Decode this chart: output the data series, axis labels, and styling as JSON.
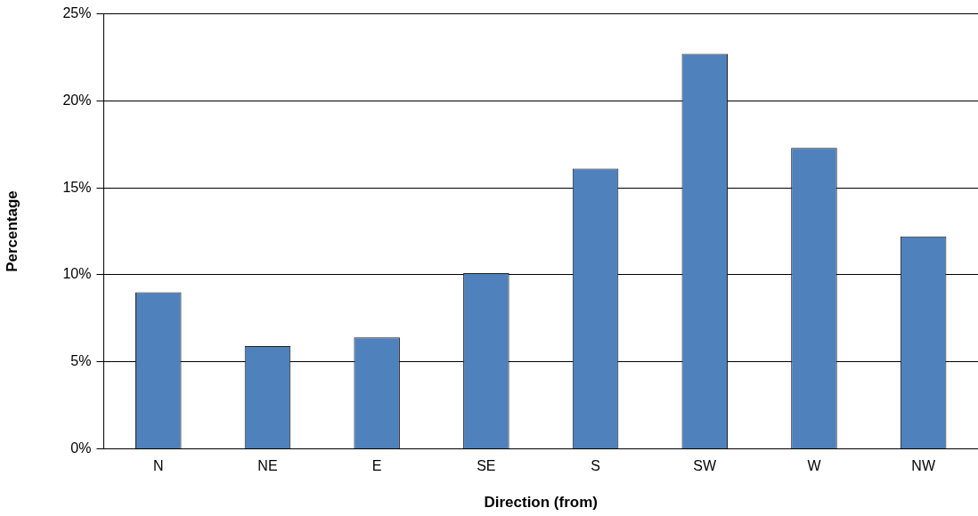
{
  "chart_data": {
    "type": "bar",
    "xlabel": "Direction (from)",
    "ylabel": "Percentage",
    "categories": [
      "N",
      "NE",
      "E",
      "SE",
      "S",
      "SW",
      "W",
      "NW"
    ],
    "values": [
      9.0,
      5.9,
      6.4,
      10.1,
      16.1,
      22.7,
      17.3,
      12.2
    ],
    "color": "#4f81bd",
    "ylim": [
      0,
      25
    ],
    "yticks": [
      {
        "value": 0,
        "label": "0%"
      },
      {
        "value": 5,
        "label": "5%"
      },
      {
        "value": 10,
        "label": "10%"
      },
      {
        "value": 15,
        "label": "15%"
      },
      {
        "value": 20,
        "label": "20%"
      },
      {
        "value": 25,
        "label": "25%"
      }
    ],
    "grid": "y",
    "legend": false
  }
}
